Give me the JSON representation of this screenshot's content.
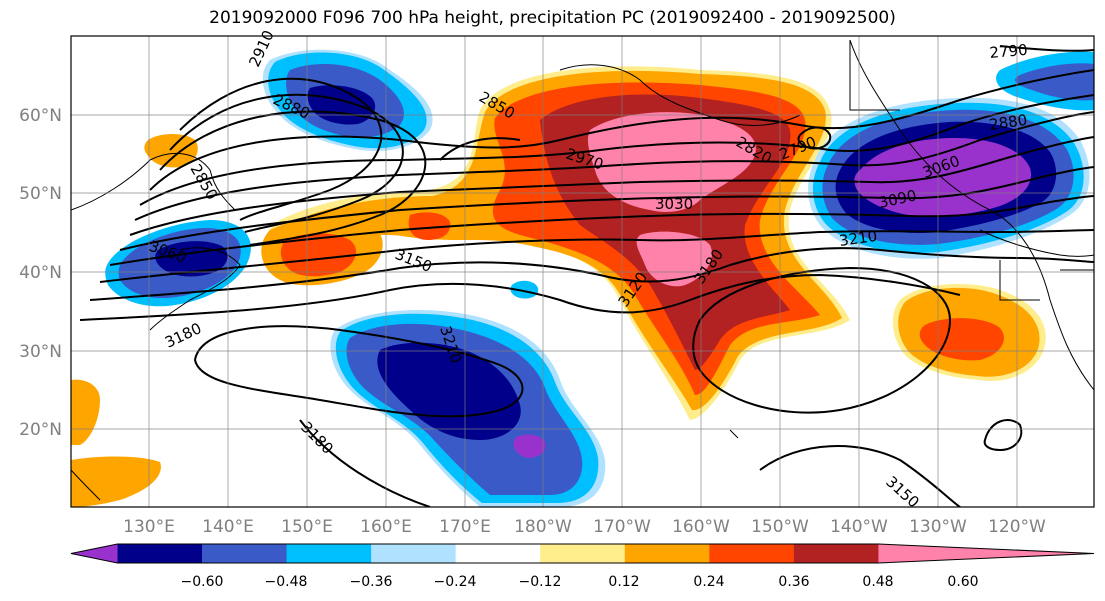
{
  "title": "2019092000 F096 700 hPa height, precipitation PC (2019092400 - 2019092500)",
  "map": {
    "lon_ticks": [
      "130°E",
      "140°E",
      "150°E",
      "160°E",
      "170°E",
      "180°W",
      "170°W",
      "160°W",
      "150°W",
      "140°W",
      "130°W",
      "120°W"
    ],
    "lat_ticks": [
      "60°N",
      "50°N",
      "40°N",
      "30°N",
      "20°N"
    ],
    "contour_labels": [
      "2910",
      "2880",
      "2850",
      "2850",
      "3060",
      "3180",
      "3150",
      "3210",
      "3180",
      "2970",
      "3030",
      "3120",
      "3180",
      "2820",
      "2790",
      "2880",
      "3090",
      "3210",
      "2790",
      "3150",
      "3060"
    ]
  },
  "colorbar": {
    "ticks": [
      "−0.60",
      "−0.48",
      "−0.36",
      "−0.24",
      "−0.12",
      "0.12",
      "0.24",
      "0.36",
      "0.48",
      "0.60"
    ],
    "colors": [
      "#9932cc",
      "#00008b",
      "#3a5bc7",
      "#00bfff",
      "#b0e2ff",
      "#ffffff",
      "#ffec8b",
      "#ffa500",
      "#ff4500",
      "#b22222",
      "#ff82ab"
    ]
  }
}
